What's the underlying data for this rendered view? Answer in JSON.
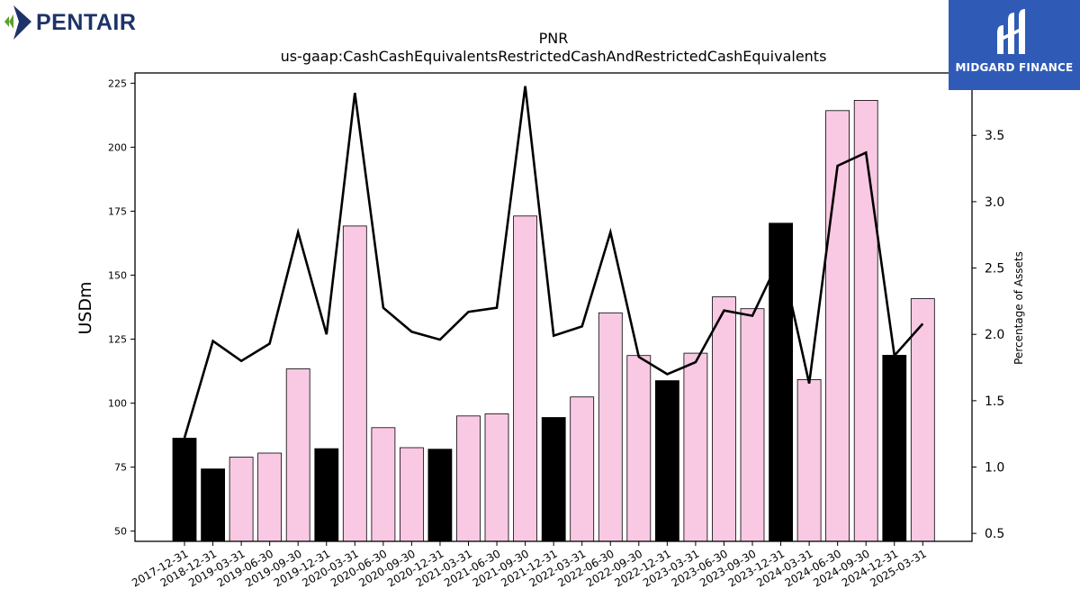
{
  "logos": {
    "company": "PENTAIR",
    "provider": "MIDGARD FINANCE"
  },
  "colors": {
    "bar_pink": "#f9c9e3",
    "bar_black": "#000000",
    "line": "#000000",
    "pentair_navy": "#1d3368",
    "pentair_green": "#5aa12a",
    "midgard_blue": "#2f5bb7"
  },
  "chart_data": {
    "type": "bar",
    "title": "PNR",
    "subtitle": "us-gaap:CashCashEquivalentsRestrictedCashAndRestrictedCashEquivalents",
    "ylabel": "USDm",
    "y2label": "Percentage of Assets",
    "ylim": [
      46,
      229
    ],
    "y2lim": [
      0.44,
      3.97
    ],
    "yticks": [
      50,
      75,
      100,
      125,
      150,
      175,
      200,
      225
    ],
    "y2ticks": [
      "0.5",
      "1.0",
      "1.5",
      "2.0",
      "2.5",
      "3.0",
      "3.5"
    ],
    "categories": [
      "2017-12-31",
      "2018-12-31",
      "2019-03-31",
      "2019-06-30",
      "2019-09-30",
      "2019-12-31",
      "2020-03-31",
      "2020-06-30",
      "2020-09-30",
      "2020-12-31",
      "2021-03-31",
      "2021-06-30",
      "2021-09-30",
      "2021-12-31",
      "2022-03-31",
      "2022-06-30",
      "2022-09-30",
      "2022-12-31",
      "2023-03-31",
      "2023-06-30",
      "2023-09-30",
      "2023-12-31",
      "2024-03-31",
      "2024-06-30",
      "2024-09-30",
      "2024-12-31",
      "2025-03-31"
    ],
    "values": [
      86.3,
      74.3,
      78.9,
      80.5,
      113.4,
      82.2,
      169.2,
      90.4,
      82.6,
      82.0,
      95.0,
      95.8,
      173.1,
      94.4,
      102.4,
      135.3,
      118.6,
      108.8,
      119.5,
      141.5,
      136.9,
      170.3,
      109.2,
      214.3,
      218.3,
      118.7,
      140.8
    ],
    "year_end": [
      true,
      true,
      false,
      false,
      false,
      true,
      false,
      false,
      false,
      true,
      false,
      false,
      false,
      true,
      false,
      false,
      false,
      true,
      false,
      false,
      false,
      true,
      false,
      false,
      false,
      true,
      false
    ],
    "series": [
      {
        "axis": "right",
        "values": [
          1.22,
          1.95,
          1.8,
          1.93,
          2.77,
          2.0,
          3.82,
          2.2,
          2.02,
          1.96,
          2.17,
          2.2,
          3.87,
          1.99,
          2.06,
          2.77,
          1.83,
          1.7,
          1.79,
          2.18,
          2.14,
          2.59,
          1.63,
          3.27,
          3.37,
          1.84,
          2.08
        ]
      }
    ]
  }
}
